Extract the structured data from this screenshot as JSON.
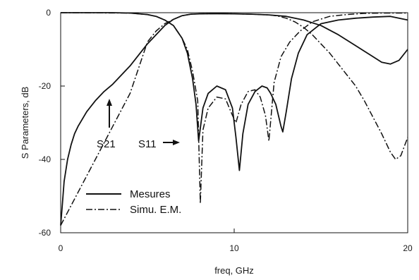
{
  "chart_data": {
    "type": "line",
    "xlabel": "freq, GHz",
    "ylabel": "S Parameters, dB",
    "xlim": [
      0,
      20
    ],
    "ylim": [
      -60,
      0
    ],
    "x_ticks": [
      "0",
      "10",
      "20"
    ],
    "y_ticks": [
      "0",
      "-20",
      "-40",
      "-60"
    ],
    "grid": false,
    "legend": {
      "placement": "bottom-left",
      "entries": [
        {
          "label": "Mesures",
          "style": "solid"
        },
        {
          "label": "Simu. E.M.",
          "style": "dash-dot"
        }
      ]
    },
    "annotations": [
      {
        "text": "S21",
        "arrow": "up",
        "x": 2.8,
        "y": -28
      },
      {
        "text": "S11",
        "arrow": "right",
        "x": 7.0,
        "y": -35
      }
    ],
    "line_color": "#111111",
    "series": [
      {
        "name": "S21",
        "style": "solid",
        "x": [
          0,
          0.1,
          0.2,
          0.4,
          0.6,
          0.8,
          1,
          1.5,
          2,
          2.5,
          3,
          3.5,
          4,
          4.5,
          5,
          5.5,
          6,
          6.5,
          7,
          7.5,
          8,
          9,
          10,
          11,
          12,
          13,
          14,
          15,
          16,
          17,
          18,
          18.5,
          19,
          19.5,
          20
        ],
        "y": [
          -58,
          -52,
          -46,
          -40,
          -36,
          -33,
          -31,
          -27,
          -24,
          -21.5,
          -19.5,
          -17,
          -14.5,
          -11.5,
          -8.5,
          -6,
          -3.5,
          -1.8,
          -0.8,
          -0.4,
          -0.3,
          -0.25,
          -0.3,
          -0.4,
          -0.6,
          -1,
          -2,
          -3.5,
          -6,
          -9,
          -12,
          -13.5,
          -14,
          -13,
          -10
        ]
      },
      {
        "name": "S11",
        "style": "solid",
        "x": [
          0,
          3,
          4,
          5,
          5.5,
          6,
          6.5,
          7,
          7.3,
          7.6,
          7.8,
          7.95,
          8.2,
          8.5,
          9,
          9.5,
          9.9,
          10.1,
          10.3,
          10.5,
          10.8,
          11.2,
          11.6,
          11.9,
          12.1,
          12.4,
          12.7,
          12.8,
          13,
          13.3,
          13.7,
          14.2,
          15,
          16,
          17,
          18,
          19,
          20
        ],
        "y": [
          0,
          0,
          -0.1,
          -0.5,
          -1,
          -2,
          -3.5,
          -7,
          -11,
          -18,
          -25,
          -35,
          -26,
          -22,
          -20,
          -21,
          -26,
          -34,
          -43,
          -33,
          -25,
          -21.5,
          -20,
          -20.5,
          -22,
          -25,
          -31,
          -32.5,
          -27,
          -18,
          -11,
          -6,
          -3,
          -2,
          -1.5,
          -1.2,
          -1,
          -2
        ]
      },
      {
        "name": "",
        "style": "dash-dot",
        "x": [
          0,
          4,
          5,
          5.5,
          6,
          6.5,
          7,
          7.3,
          7.6,
          7.9,
          8.05,
          8.2,
          8.5,
          9,
          9.5,
          9.9,
          10.1,
          10.4,
          10.8,
          11.2,
          11.5,
          11.8,
          12,
          12.3,
          12.7,
          13.2,
          13.8,
          14.5,
          15.5,
          16.5,
          17.5,
          18.5,
          19,
          19.3,
          19.6,
          20
        ],
        "y": [
          0,
          -0.1,
          -0.5,
          -1,
          -2,
          -3.5,
          -7,
          -10,
          -16,
          -24,
          -52,
          -32,
          -26,
          -23,
          -23.5,
          -28,
          -30,
          -25,
          -21.5,
          -21,
          -23,
          -28,
          -35,
          -19,
          -12,
          -8,
          -5,
          -2.5,
          -1,
          -0.5,
          -0.2,
          -0.1,
          -0.1,
          -0.1,
          -0.1,
          -0.1
        ]
      },
      {
        "name": "",
        "style": "dash-dot",
        "x": [
          0,
          4,
          5,
          5.5,
          6,
          6.5,
          7,
          7.5,
          8,
          9,
          10,
          11,
          12,
          12.5,
          13,
          13.5,
          14,
          14.5,
          15,
          15.5,
          16,
          16.5,
          17,
          17.5,
          18,
          18.5,
          19,
          19.3,
          19.6,
          20
        ],
        "y": [
          -58,
          -22,
          -8,
          -5,
          -3,
          -1.8,
          -0.8,
          -0.4,
          -0.3,
          -0.25,
          -0.3,
          -0.4,
          -0.6,
          -0.9,
          -1.5,
          -2.5,
          -4,
          -6,
          -8.5,
          -11,
          -14,
          -17,
          -20,
          -24,
          -28.5,
          -33,
          -38,
          -40,
          -39,
          -34
        ]
      }
    ]
  }
}
